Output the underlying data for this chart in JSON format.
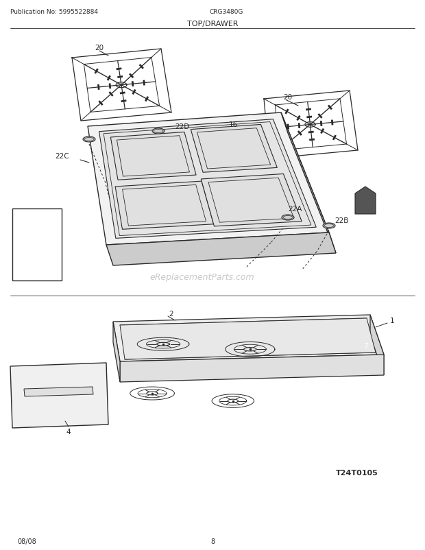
{
  "title": "TOP/DRAWER",
  "pub_no": "Publication No: 5995522884",
  "model": "CRG3480G",
  "date": "08/08",
  "page": "8",
  "diagram_code": "T24T0105",
  "watermark": "eReplacementParts.com",
  "bg_color": "#ffffff",
  "line_color": "#2a2a2a"
}
